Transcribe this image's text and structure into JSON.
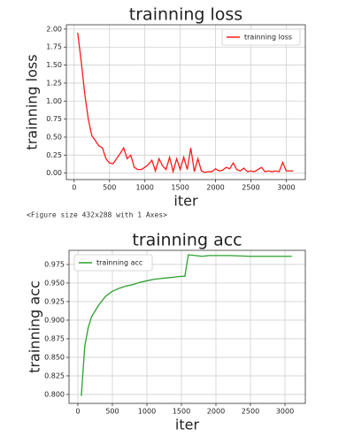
{
  "chart_data": [
    {
      "type": "line",
      "title": "trainning loss",
      "x_label": "iter",
      "y_label": "trainning loss",
      "x": [
        50,
        100,
        150,
        200,
        250,
        300,
        350,
        400,
        450,
        500,
        550,
        600,
        650,
        700,
        750,
        800,
        850,
        900,
        950,
        1000,
        1050,
        1100,
        1150,
        1200,
        1250,
        1300,
        1350,
        1400,
        1450,
        1500,
        1550,
        1600,
        1650,
        1700,
        1750,
        1800,
        1850,
        1900,
        1950,
        2000,
        2050,
        2100,
        2150,
        2200,
        2250,
        2300,
        2350,
        2400,
        2450,
        2500,
        2550,
        2600,
        2650,
        2700,
        2750,
        2800,
        2850,
        2900,
        2950,
        3000,
        3050,
        3100
      ],
      "series": [
        {
          "name": "trainning loss",
          "color": "#ff1a1a",
          "values": [
            1.95,
            1.55,
            1.1,
            0.75,
            0.52,
            0.45,
            0.38,
            0.35,
            0.2,
            0.14,
            0.13,
            0.2,
            0.27,
            0.35,
            0.2,
            0.25,
            0.08,
            0.05,
            0.05,
            0.08,
            0.12,
            0.18,
            0.03,
            0.2,
            0.1,
            0.05,
            0.22,
            0.02,
            0.2,
            0.05,
            0.22,
            0.05,
            0.35,
            0.02,
            0.2,
            0.03,
            0.01,
            0.02,
            0.02,
            0.06,
            0.03,
            0.04,
            0.08,
            0.06,
            0.14,
            0.05,
            0.03,
            0.07,
            0.02,
            0.03,
            0.02,
            0.05,
            0.08,
            0.02,
            0.03,
            0.02,
            0.03,
            0.02,
            0.15,
            0.03,
            0.03,
            0.03
          ]
        }
      ],
      "xlim": [
        -110,
        3270
      ],
      "xticks": [
        0,
        500,
        1000,
        1500,
        2000,
        2500,
        3000
      ],
      "ylim": [
        -0.09,
        2.06
      ],
      "yticks": [
        {
          "value": 0,
          "label": "0.00"
        },
        {
          "value": 0.25,
          "label": "0.25"
        },
        {
          "value": 0.5,
          "label": "0.50"
        },
        {
          "value": 0.75,
          "label": "0.75"
        },
        {
          "value": 1,
          "label": "1.00"
        },
        {
          "value": 1.25,
          "label": "1.25"
        },
        {
          "value": 1.5,
          "label": "1.50"
        },
        {
          "value": 1.75,
          "label": "1.75"
        },
        {
          "value": 2,
          "label": "2.00"
        }
      ],
      "grid": true,
      "legend": "upper right"
    },
    {
      "type": "line",
      "title": "trainning acc",
      "x_label": "iter",
      "y_label": "trainning acc",
      "x": [
        50,
        100,
        150,
        200,
        300,
        400,
        500,
        600,
        700,
        800,
        900,
        1000,
        1100,
        1200,
        1300,
        1400,
        1500,
        1550,
        1600,
        1700,
        1800,
        1900,
        2000,
        2200,
        2500,
        2800,
        3000,
        3100
      ],
      "series": [
        {
          "name": "trainning acc",
          "color": "#2ca02c",
          "values": [
            0.798,
            0.865,
            0.89,
            0.905,
            0.92,
            0.932,
            0.939,
            0.943,
            0.946,
            0.948,
            0.951,
            0.953,
            0.955,
            0.956,
            0.957,
            0.958,
            0.959,
            0.959,
            0.988,
            0.987,
            0.986,
            0.987,
            0.987,
            0.987,
            0.986,
            0.986,
            0.986,
            0.986
          ]
        }
      ],
      "xlim": [
        -128,
        3295
      ],
      "xticks": [
        0,
        500,
        1000,
        1500,
        2000,
        2500,
        3000
      ],
      "ylim": [
        0.788,
        0.994
      ],
      "yticks": [
        {
          "value": 0.8,
          "label": "0.800"
        },
        {
          "value": 0.825,
          "label": "0.825"
        },
        {
          "value": 0.85,
          "label": "0.850"
        },
        {
          "value": 0.875,
          "label": "0.875"
        },
        {
          "value": 0.9,
          "label": "0.900"
        },
        {
          "value": 0.925,
          "label": "0.925"
        },
        {
          "value": 0.95,
          "label": "0.950"
        },
        {
          "value": 0.975,
          "label": "0.975"
        }
      ],
      "grid": true,
      "legend": "upper left"
    }
  ],
  "output_text": "<Figure size 432x288 with 1 Axes>"
}
